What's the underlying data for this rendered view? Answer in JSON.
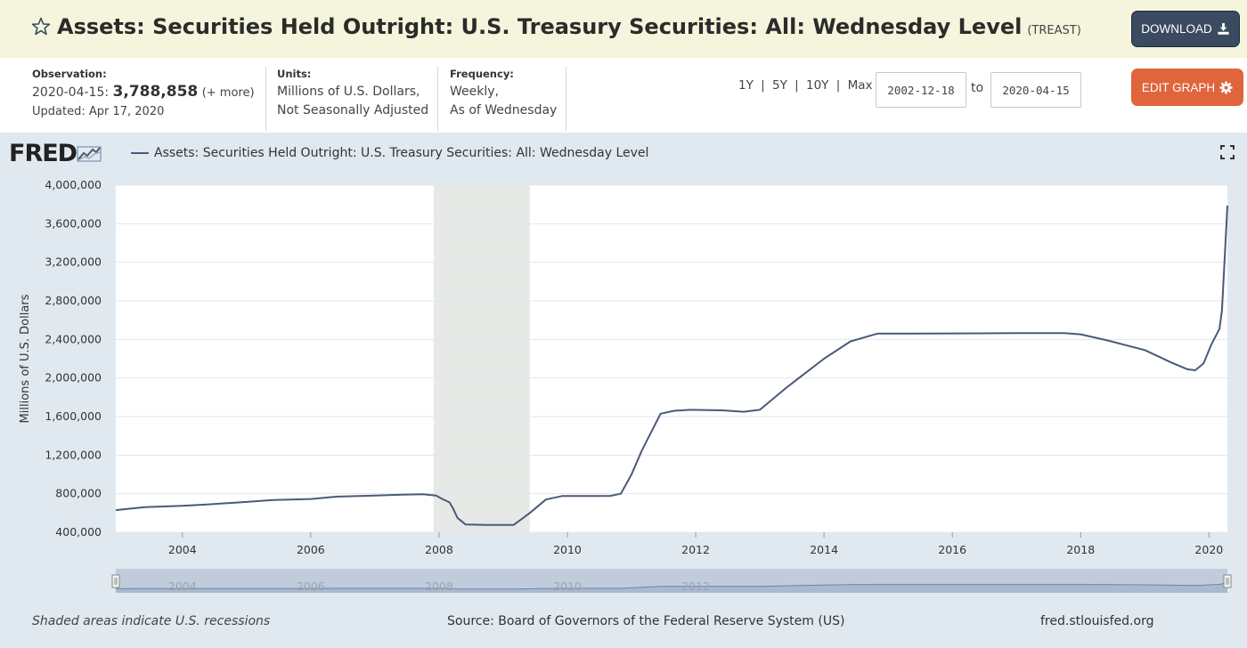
{
  "header": {
    "title": "Assets: Securities Held Outright: U.S. Treasury Securities: All: Wednesday Level",
    "code": "(TREAST)",
    "download_label": "DOWNLOAD",
    "star_icon": "star-outline-icon",
    "download_icon": "download-icon"
  },
  "info": {
    "observation_label": "Observation:",
    "observation_date": "2020-04-15:",
    "observation_value": "3,788,858",
    "more_link": "(+ more)",
    "updated": "Updated: Apr 17, 2020",
    "units_label": "Units:",
    "units_line1": "Millions of U.S. Dollars,",
    "units_line2": "Not Seasonally Adjusted",
    "frequency_label": "Frequency:",
    "frequency_line1": "Weekly,",
    "frequency_line2": "As of Wednesday",
    "range_1y": "1Y",
    "range_5y": "5Y",
    "range_10y": "10Y",
    "range_max": "Max",
    "range_sep": "|",
    "date_from": "2002-12-18",
    "to_label": "to",
    "date_to": "2020-04-15",
    "edit_label": "EDIT GRAPH",
    "edit_icon": "gear-icon"
  },
  "graph": {
    "logo_text": "FRED",
    "legend_label": "Assets: Securities Held Outright: U.S. Treasury Securities: All: Wednesday Level",
    "fullscreen_icon": "fullscreen-icon",
    "footer_note": "Shaded areas indicate U.S. recessions",
    "footer_source": "Source: Board of Governors of the Federal Reserve System (US)",
    "footer_site": "fred.stlouisfed.org"
  },
  "colors": {
    "header_bg": "#f4f5dc",
    "graph_bg": "#e1e9f0",
    "line": "#4a5a78",
    "recession": "#e7e9e7",
    "download_btn": "#3a4a60",
    "edit_btn": "#e0643c"
  },
  "chart_data": {
    "type": "line",
    "title": "",
    "xlabel": "",
    "ylabel": "Millions of U.S. Dollars",
    "xlim": [
      "2002-12-18",
      "2020-04-15"
    ],
    "ylim": [
      400000,
      4000000
    ],
    "y_ticks": [
      "400,000",
      "800,000",
      "1,200,000",
      "1,600,000",
      "2,000,000",
      "2,400,000",
      "2,800,000",
      "3,200,000",
      "3,600,000",
      "4,000,000"
    ],
    "x_ticks": [
      "2004",
      "2006",
      "2008",
      "2010",
      "2012",
      "2014",
      "2016",
      "2018",
      "2020"
    ],
    "grid": "horizontal",
    "recession": {
      "start": "2007-12-01",
      "end": "2009-06-01"
    },
    "navigator_ticks": [
      "2004",
      "2006",
      "2008",
      "2010",
      "2012"
    ],
    "series": [
      {
        "name": "Assets: Securities Held Outright: U.S. Treasury Securities: All: Wednesday Level",
        "x": [
          "2002-12-18",
          "2003-06-01",
          "2004-01-01",
          "2004-06-01",
          "2005-01-01",
          "2005-06-01",
          "2006-01-01",
          "2006-06-01",
          "2007-01-01",
          "2007-06-01",
          "2007-10-01",
          "2007-12-15",
          "2008-01-20",
          "2008-03-01",
          "2008-03-20",
          "2008-04-15",
          "2008-06-01",
          "2008-10-01",
          "2009-01-01",
          "2009-03-01",
          "2009-06-01",
          "2009-09-01",
          "2009-12-01",
          "2010-06-01",
          "2010-09-01",
          "2010-11-01",
          "2011-01-01",
          "2011-03-01",
          "2011-06-15",
          "2011-09-01",
          "2011-12-01",
          "2012-06-01",
          "2012-10-01",
          "2013-01-01",
          "2013-06-01",
          "2014-01-01",
          "2014-06-01",
          "2014-11-01",
          "2015-06-01",
          "2016-01-01",
          "2016-06-01",
          "2017-01-01",
          "2017-06-01",
          "2017-10-01",
          "2018-01-01",
          "2018-06-01",
          "2019-01-01",
          "2019-06-01",
          "2019-09-01",
          "2019-10-15",
          "2019-12-01",
          "2020-01-15",
          "2020-03-01",
          "2020-03-15",
          "2020-04-15"
        ],
        "values": [
          630000,
          660000,
          675000,
          690000,
          715000,
          735000,
          745000,
          770000,
          780000,
          790000,
          794000,
          780000,
          745000,
          710000,
          650000,
          550000,
          480000,
          476000,
          476000,
          476000,
          600000,
          740000,
          776000,
          776000,
          778000,
          800000,
          1000000,
          1250000,
          1630000,
          1660000,
          1670000,
          1665000,
          1650000,
          1670000,
          1900000,
          2200000,
          2380000,
          2460000,
          2461000,
          2462000,
          2463000,
          2465000,
          2465000,
          2465000,
          2453000,
          2390000,
          2290000,
          2160000,
          2090000,
          2080000,
          2150000,
          2350000,
          2510000,
          2700000,
          3788858
        ]
      }
    ]
  }
}
